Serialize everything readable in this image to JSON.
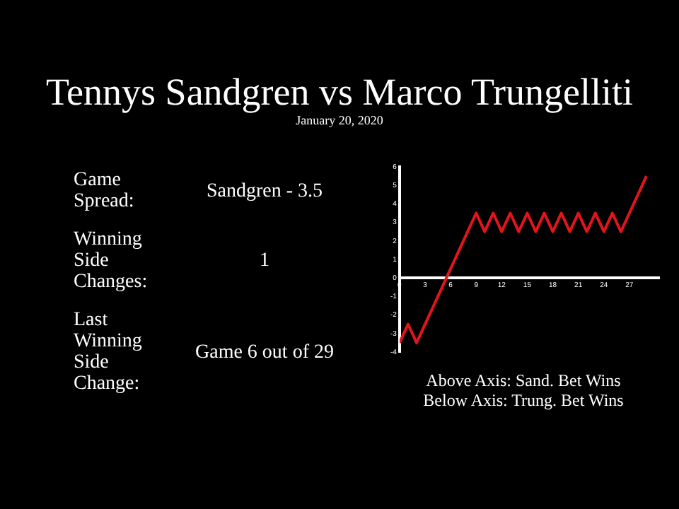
{
  "chart_data": [
    {
      "type": "other",
      "title": "Tennys Sandgren vs Marco Trungelliti",
      "subtitle": "January 20, 2020",
      "annotations": [
        "Game Spread:",
        "Sandgren - 3.5",
        "Winning Side Changes:",
        "1",
        "Last Winning Side Change:",
        "Game 6 out of 29"
      ]
    },
    {
      "type": "line",
      "x": [
        0,
        1,
        2,
        3,
        4,
        5,
        6,
        7,
        8,
        9,
        10,
        11,
        12,
        13,
        14,
        15,
        16,
        17,
        18,
        19,
        20,
        21,
        22,
        23,
        24,
        25,
        26,
        27,
        28,
        29
      ],
      "series": [
        {
          "color": "#e3141c",
          "values": [
            -3.5,
            -2.5,
            -3.5,
            -2.5,
            -1.5,
            -0.5,
            0.5,
            1.5,
            2.5,
            3.5,
            2.5,
            3.5,
            2.5,
            3.5,
            2.5,
            3.5,
            2.5,
            3.5,
            2.5,
            3.5,
            2.5,
            3.5,
            2.5,
            3.5,
            2.5,
            3.5,
            2.5,
            3.5,
            4.5,
            5.5
          ]
        }
      ],
      "xlim": [
        0,
        30.5
      ],
      "xticks": [
        0,
        3,
        6,
        9,
        12,
        15,
        18,
        21,
        24,
        27
      ],
      "ylim": [
        -4,
        6
      ],
      "yticks": [
        -4,
        -3,
        -2,
        -1,
        0,
        1,
        2,
        3,
        4,
        5,
        6
      ],
      "marker": "none",
      "line_style": "solid",
      "annotations": [
        "Above Axis: Sand. Bet Wins",
        "Below Axis: Trung. Bet Wins"
      ]
    }
  ]
}
